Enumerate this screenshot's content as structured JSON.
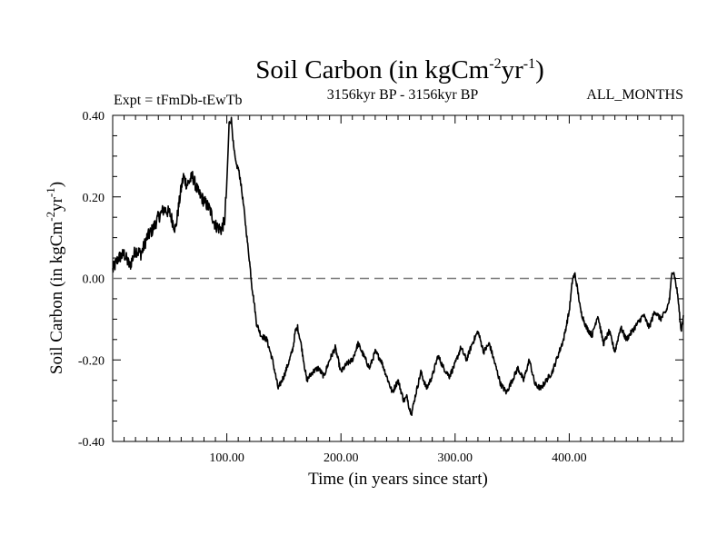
{
  "chart_data": {
    "type": "line",
    "title": {
      "main": "Soil Carbon (in kgCm",
      "sup1": "-2",
      "mid": "yr",
      "sup2": "-1",
      "end": ")"
    },
    "header": {
      "experiment": "Expt = tFmDb-tEwTb",
      "period": "3156kyr BP - 3156kyr BP",
      "months": "ALL_MONTHS"
    },
    "xlabel": "Time (in years since start)",
    "ylabel": {
      "main": "Soil Carbon (in kgCm",
      "sup1": "-2",
      "mid": "yr",
      "sup2": "-1",
      "end": ")"
    },
    "xlim": [
      0,
      500
    ],
    "ylim": [
      -0.4,
      0.4
    ],
    "x_ticks": [
      100,
      200,
      300,
      400
    ],
    "x_tick_labels": [
      "100.00",
      "200.00",
      "300.00",
      "400.00"
    ],
    "y_ticks": [
      -0.4,
      -0.2,
      0.0,
      0.2,
      0.4
    ],
    "y_tick_labels": [
      "-0.40",
      "-0.20",
      "0.00",
      "0.20",
      "0.40"
    ],
    "reference_line": {
      "y": 0.0,
      "style": "dashed"
    },
    "series": [
      {
        "name": "Soil Carbon",
        "x": [
          0,
          5,
          10,
          15,
          20,
          25,
          30,
          35,
          40,
          45,
          50,
          55,
          60,
          62,
          65,
          70,
          75,
          80,
          85,
          90,
          95,
          98,
          100,
          102,
          104,
          106,
          108,
          110,
          112,
          115,
          118,
          120,
          122,
          124,
          126,
          130,
          135,
          140,
          145,
          150,
          155,
          158,
          160,
          162,
          165,
          170,
          175,
          180,
          185,
          190,
          195,
          200,
          205,
          210,
          215,
          220,
          225,
          230,
          235,
          240,
          245,
          250,
          255,
          258,
          260,
          262,
          265,
          270,
          275,
          280,
          285,
          290,
          295,
          300,
          305,
          310,
          315,
          320,
          325,
          330,
          335,
          340,
          345,
          350,
          355,
          360,
          365,
          370,
          375,
          380,
          385,
          390,
          395,
          400,
          403,
          405,
          408,
          410,
          415,
          420,
          425,
          430,
          435,
          440,
          445,
          450,
          455,
          460,
          465,
          470,
          475,
          480,
          485,
          488,
          490,
          492,
          495,
          498,
          500
        ],
        "y": [
          0.02,
          0.05,
          0.06,
          0.03,
          0.07,
          0.06,
          0.1,
          0.12,
          0.15,
          0.17,
          0.16,
          0.12,
          0.22,
          0.25,
          0.23,
          0.25,
          0.21,
          0.19,
          0.17,
          0.13,
          0.12,
          0.14,
          0.23,
          0.38,
          0.39,
          0.32,
          0.28,
          0.27,
          0.24,
          0.17,
          0.09,
          0.04,
          -0.02,
          -0.06,
          -0.11,
          -0.14,
          -0.15,
          -0.2,
          -0.27,
          -0.24,
          -0.2,
          -0.17,
          -0.13,
          -0.12,
          -0.16,
          -0.25,
          -0.23,
          -0.22,
          -0.24,
          -0.2,
          -0.17,
          -0.23,
          -0.21,
          -0.2,
          -0.16,
          -0.19,
          -0.22,
          -0.18,
          -0.2,
          -0.24,
          -0.28,
          -0.25,
          -0.3,
          -0.29,
          -0.32,
          -0.33,
          -0.29,
          -0.23,
          -0.27,
          -0.24,
          -0.19,
          -0.22,
          -0.24,
          -0.21,
          -0.17,
          -0.2,
          -0.16,
          -0.13,
          -0.18,
          -0.16,
          -0.21,
          -0.26,
          -0.28,
          -0.25,
          -0.22,
          -0.25,
          -0.2,
          -0.26,
          -0.27,
          -0.25,
          -0.23,
          -0.19,
          -0.15,
          -0.08,
          0.0,
          0.01,
          -0.04,
          -0.08,
          -0.12,
          -0.14,
          -0.09,
          -0.16,
          -0.13,
          -0.18,
          -0.12,
          -0.15,
          -0.13,
          -0.11,
          -0.09,
          -0.12,
          -0.08,
          -0.1,
          -0.08,
          -0.05,
          0.02,
          0.01,
          -0.04,
          -0.13,
          -0.09
        ]
      }
    ]
  }
}
